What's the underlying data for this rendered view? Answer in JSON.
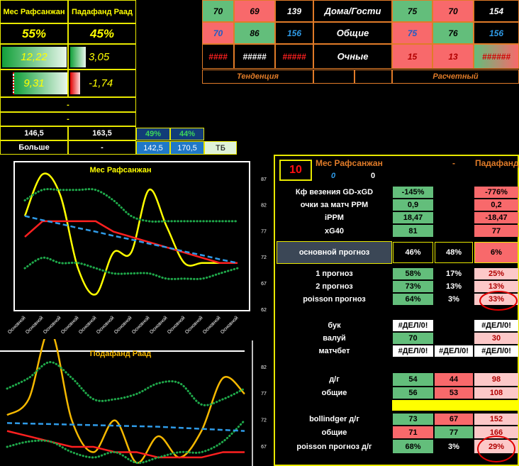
{
  "left_panel": {
    "rows": [
      [
        "Мес Рафсанжан",
        "Падафанд Раад"
      ],
      [
        "55%",
        "45%"
      ],
      [
        "12,22",
        "3,05"
      ],
      [
        "9,31",
        "-1,74"
      ],
      [
        "-"
      ],
      [
        "-"
      ],
      [
        "146,5",
        "163,5"
      ],
      [
        "Больше",
        "-"
      ]
    ],
    "side": [
      [
        "49%",
        "44%"
      ],
      [
        "142,5",
        "170,5",
        "ТБ"
      ]
    ]
  },
  "top_table": {
    "rows": [
      [
        "70",
        "69",
        "139",
        "Дома/Гости",
        "75",
        "70",
        "154"
      ],
      [
        "70",
        "86",
        "156",
        "Общие",
        "75",
        "76",
        "156"
      ],
      [
        "####",
        "#####",
        "#####",
        "Очные",
        "15",
        "13",
        "######"
      ]
    ],
    "footer": [
      "Тенденция",
      "Расчетный"
    ]
  },
  "charts": [
    {
      "type": "line",
      "title": "Мес Рафсанжан",
      "categories": [
        "Основной",
        "Основной",
        "Основной",
        "Основной",
        "Основной",
        "Основной",
        "Основной",
        "Основной",
        "Основной",
        "Основной",
        "Основной",
        "Основной",
        "Основной"
      ],
      "ylim": [
        62,
        87
      ],
      "yticks": [
        62,
        67,
        72,
        77,
        82,
        87
      ],
      "series": [
        {
          "color": "#ffff00",
          "curve": "smooth",
          "dash": "solid",
          "values": [
            80,
            88,
            84,
            70,
            65,
            73,
            73,
            85,
            78,
            71,
            71,
            71,
            71
          ]
        },
        {
          "color": "#ff2020",
          "curve": "straight",
          "dash": "solid",
          "values": [
            76,
            79,
            79,
            79,
            79,
            77,
            76,
            75,
            74,
            73,
            72,
            71,
            71
          ]
        },
        {
          "color": "#1fa84a",
          "curve": "smooth",
          "dash": "dotted",
          "values": [
            83,
            85,
            85,
            85,
            85,
            83,
            80,
            79,
            79,
            79,
            79,
            79,
            79
          ]
        },
        {
          "color": "#1fa84a",
          "curve": "smooth",
          "dash": "dotted",
          "values": [
            70,
            72,
            71,
            71,
            70,
            69,
            69,
            69,
            68,
            68,
            68,
            69,
            70
          ]
        },
        {
          "color": "#2f9be8",
          "curve": "straight",
          "dash": "dashed",
          "values": [
            80,
            79.2,
            78.5,
            77.7,
            77,
            76.2,
            75.5,
            74.7,
            74,
            73.2,
            72.5,
            71.7,
            71
          ]
        }
      ]
    },
    {
      "type": "line",
      "title": "Подафанд Раад",
      "ylim": [
        67,
        82
      ],
      "yticks": [
        67,
        72,
        77,
        82
      ],
      "series": [
        {
          "color": "#f5b800",
          "curve": "smooth",
          "dash": "solid",
          "values": [
            73,
            76,
            89,
            72,
            66,
            72,
            64,
            69,
            65,
            70,
            80,
            77
          ]
        },
        {
          "color": "#ff2020",
          "curve": "straight",
          "dash": "solid",
          "values": [
            70,
            69,
            68,
            67,
            67,
            66,
            66,
            65,
            65,
            65,
            66,
            66
          ]
        },
        {
          "color": "#1fa84a",
          "curve": "smooth",
          "dash": "dotted",
          "values": [
            78,
            80,
            83,
            80,
            76,
            76,
            77,
            79,
            79,
            75,
            76,
            78
          ]
        },
        {
          "color": "#1fa84a",
          "curve": "smooth",
          "dash": "dotted",
          "values": [
            67,
            68,
            68,
            66,
            65,
            66,
            64,
            65,
            66,
            66,
            68,
            72
          ]
        },
        {
          "color": "#2f9be8",
          "curve": "straight",
          "dash": "dashed",
          "values": [
            71.5,
            71.4,
            71.3,
            71.2,
            71.1,
            71,
            70.9,
            70.8,
            70.6,
            70.4,
            70.2,
            70
          ]
        }
      ]
    }
  ],
  "stats": {
    "header": {
      "number": "10",
      "home": "Мес Рафсанжан",
      "separator": "-",
      "away": "Падафанд",
      "home_value": "0",
      "away_value": "0"
    },
    "rows": [
      {
        "label": "Кф везения GD-xGD",
        "values": [
          "-145%",
          null,
          "-776%"
        ]
      },
      {
        "label": "очки за матч PPM",
        "values": [
          "0,9",
          null,
          "0,2"
        ]
      },
      {
        "label": "iPPM",
        "values": [
          "18,47",
          null,
          "-18,47"
        ]
      },
      {
        "label": "xG40",
        "values": [
          "81",
          null,
          "77"
        ]
      },
      {
        "label": "основной прогноз",
        "values": [
          "46%",
          "48%",
          "6%"
        ]
      },
      {
        "label": "1 прогноз",
        "values": [
          "58%",
          "17%",
          "25%"
        ]
      },
      {
        "label": "2 прогноз",
        "values": [
          "73%",
          "13%",
          "13%"
        ]
      },
      {
        "label": "poisson прогноз",
        "values": [
          "64%",
          "3%",
          "33%"
        ]
      },
      {
        "label": "бук",
        "values": [
          "#ДЕЛ/0!",
          null,
          "#ДЕЛ/0!"
        ]
      },
      {
        "label": "валуй",
        "values": [
          "70",
          null,
          "30"
        ]
      },
      {
        "label": "матчбет",
        "values": [
          "#ДЕЛ/0!",
          "#ДЕЛ/0!",
          "#ДЕЛ/0!"
        ]
      },
      {
        "label": "д/г",
        "values": [
          "54",
          "44",
          "98"
        ]
      },
      {
        "label": "общие",
        "values": [
          "56",
          "53",
          "108"
        ]
      },
      {
        "label": "bollindger д/г",
        "values": [
          "73",
          "67",
          "152"
        ]
      },
      {
        "label": "общие",
        "values": [
          "71",
          "77",
          "166"
        ]
      },
      {
        "label": "poisson прогноз д/г",
        "values": [
          "68%",
          "3%",
          "29%"
        ]
      }
    ]
  }
}
